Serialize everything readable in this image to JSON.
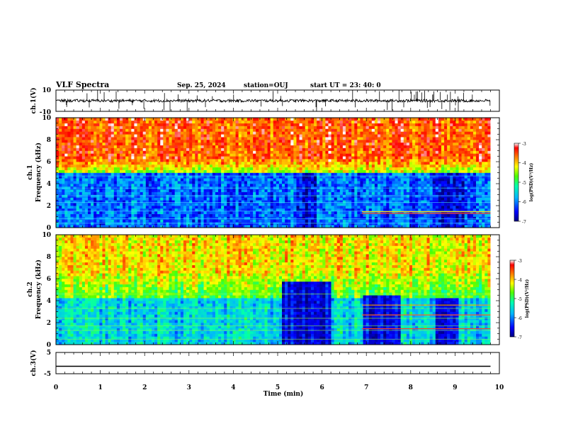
{
  "header": {
    "title": "VLF Spectra",
    "date": "Sep. 25, 2024",
    "station": "station=OUJ",
    "start_time": "start  UT  =  23: 40: 0"
  },
  "chart_data": [
    {
      "type": "line",
      "panel": "ch1-waveform",
      "ylabel": "ch.1(V)",
      "ylim": [
        -10,
        10
      ],
      "y_ticks": [
        "10",
        "-10"
      ],
      "x_range_min": [
        0,
        9.8
      ],
      "trace_level": 0.0
    },
    {
      "type": "heatmap",
      "panel": "ch1-spectrogram",
      "ylabel_line1": "ch.1",
      "ylabel_line2": "Frequency (kHz)",
      "ylim": [
        0,
        10
      ],
      "y_ticks": [
        "0",
        "2",
        "4",
        "6",
        "8",
        "10"
      ],
      "colorbar": {
        "label": "log(PSD)(V²/Hz)",
        "ticks": [
          "-3",
          "-4",
          "-5",
          "-6",
          "-7"
        ],
        "range": [
          -7,
          -3
        ],
        "colors": [
          "#00007f",
          "#0000ff",
          "#00b4ff",
          "#00ffb0",
          "#50ff00",
          "#ffff00",
          "#ff8000",
          "#ff0000",
          "#ffffff"
        ]
      }
    },
    {
      "type": "heatmap",
      "panel": "ch2-spectrogram",
      "ylabel_line1": "ch.2",
      "ylabel_line2": "Frequency (kHz)",
      "ylim": [
        0,
        10
      ],
      "y_ticks": [
        "0",
        "2",
        "4",
        "6",
        "8",
        "10"
      ],
      "colorbar": {
        "label": "log(PSD)(V²/Hz)",
        "ticks": [
          "-3",
          "-4",
          "-5",
          "-6",
          "-7"
        ],
        "range": [
          -7,
          -3
        ],
        "colors": [
          "#00007f",
          "#0000ff",
          "#00b4ff",
          "#00ffb0",
          "#50ff00",
          "#ffff00",
          "#ff8000",
          "#ff0000",
          "#ffffff"
        ]
      }
    },
    {
      "type": "line",
      "panel": "ch3-waveform",
      "ylabel": "ch.3(V)",
      "ylim": [
        -5,
        5
      ],
      "y_ticks": [
        "5",
        "-5"
      ],
      "x_range_min": [
        0,
        9.8
      ],
      "trace_level": -1.5
    }
  ],
  "x_axis": {
    "label": "Time  (min)",
    "ticks": [
      "0",
      "1",
      "2",
      "3",
      "4",
      "5",
      "6",
      "7",
      "8",
      "9",
      "10"
    ],
    "range": [
      0,
      10
    ]
  }
}
